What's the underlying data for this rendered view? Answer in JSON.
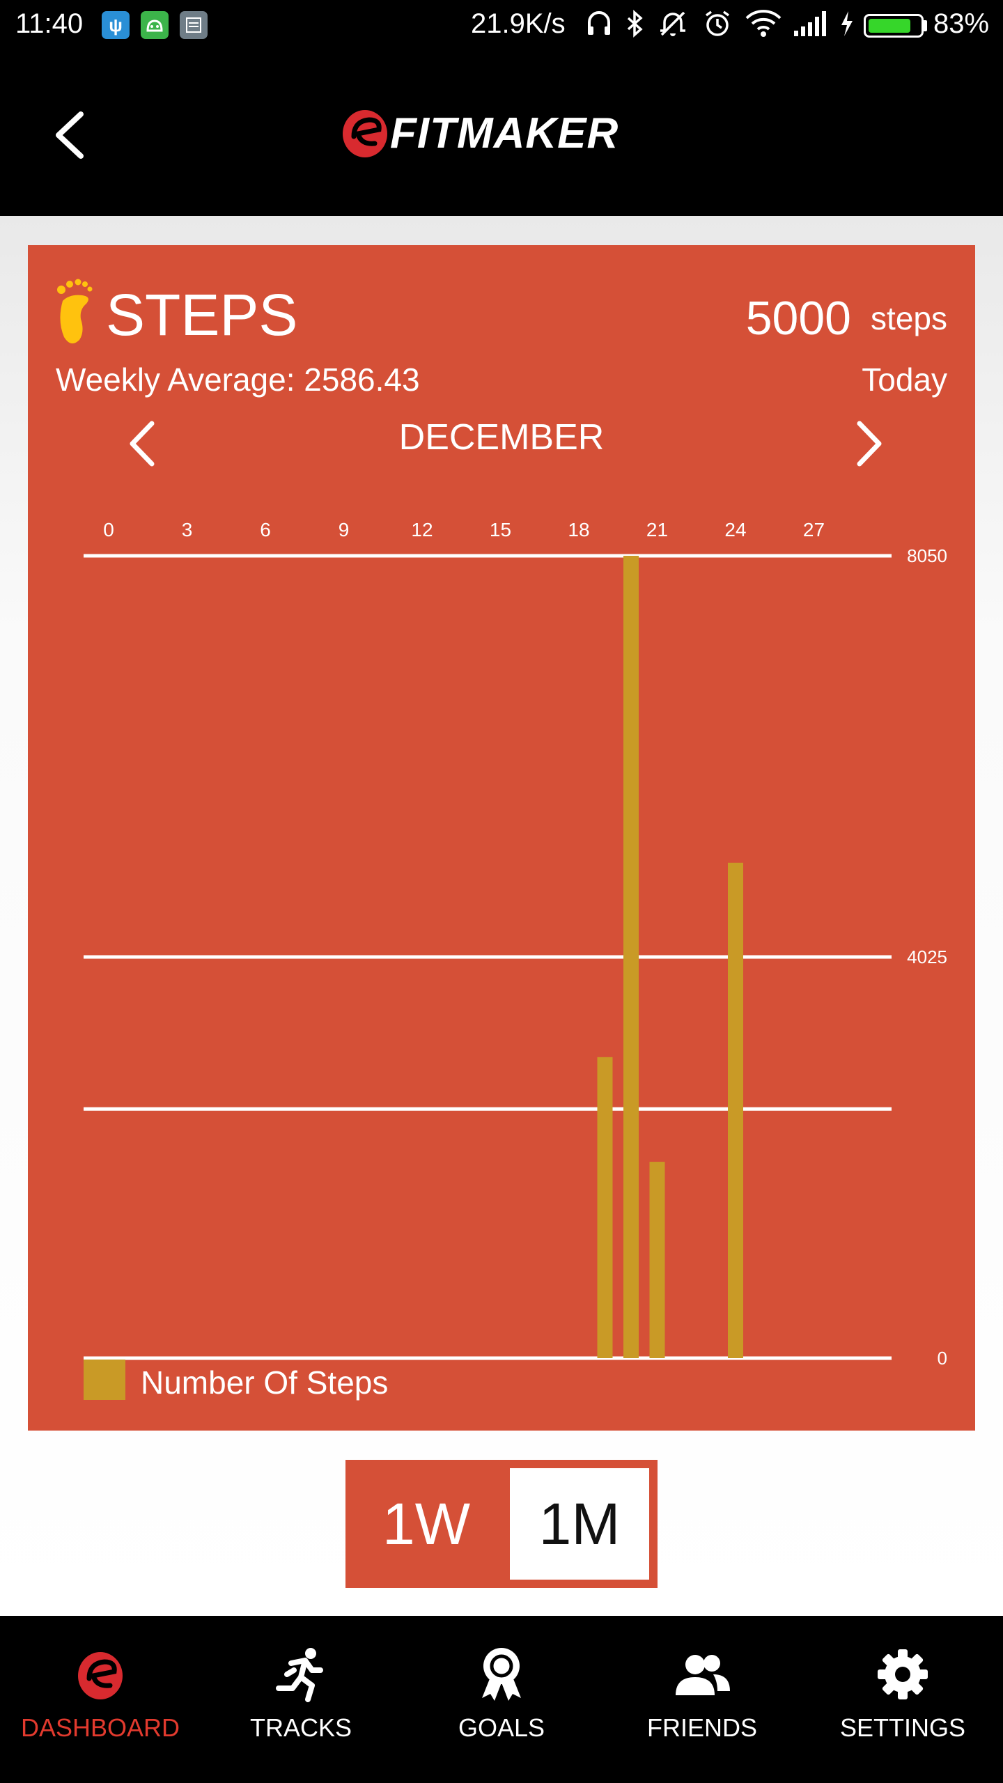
{
  "status_bar": {
    "time": "11:40",
    "network_speed": "21.9K/s",
    "battery_percent": "83%",
    "battery_level": 0.83,
    "icons": [
      "usb-icon",
      "android-icon",
      "notes-icon",
      "headset-icon",
      "bluetooth-icon",
      "mute-icon",
      "alarm-icon",
      "wifi-icon",
      "signal-icon",
      "charging-icon",
      "battery-icon"
    ]
  },
  "header": {
    "logo_text": "FITMAKER",
    "back_icon": "chevron-left-icon"
  },
  "card": {
    "title": "STEPS",
    "goal_value": "5000",
    "goal_unit": "steps",
    "weekly_average": "Weekly Average: 2586.43",
    "period": "Today",
    "month": "DECEMBER",
    "background_color": "#d55037"
  },
  "chart_data": {
    "type": "bar",
    "title": "",
    "x_ticks": [
      "0",
      "3",
      "6",
      "9",
      "12",
      "15",
      "18",
      "21",
      "24",
      "27"
    ],
    "y_ticks": [
      "8050",
      "4025",
      "0"
    ],
    "ylim": [
      0,
      8050
    ],
    "extra_gridline_value": 2500,
    "x_range": [
      0,
      30
    ],
    "series": [
      {
        "name": "Number Of Steps",
        "color": "#c99a26",
        "points": [
          {
            "x": 19,
            "y": 3020
          },
          {
            "x": 20,
            "y": 8050
          },
          {
            "x": 21,
            "y": 1970
          },
          {
            "x": 24,
            "y": 4970
          }
        ]
      }
    ],
    "legend_position": "bottom-left",
    "grid": true
  },
  "range_toggle": {
    "options": [
      "1W",
      "1M"
    ],
    "selected": "1M"
  },
  "bottom_nav": {
    "items": [
      {
        "label": "DASHBOARD",
        "icon": "fitmaker-logo-icon",
        "active": true
      },
      {
        "label": "TRACKS",
        "icon": "runner-icon",
        "active": false
      },
      {
        "label": "GOALS",
        "icon": "award-ribbon-icon",
        "active": false
      },
      {
        "label": "FRIENDS",
        "icon": "people-icon",
        "active": false
      },
      {
        "label": "SETTINGS",
        "icon": "gear-icon",
        "active": false
      }
    ],
    "active_color": "#e23a2e"
  }
}
